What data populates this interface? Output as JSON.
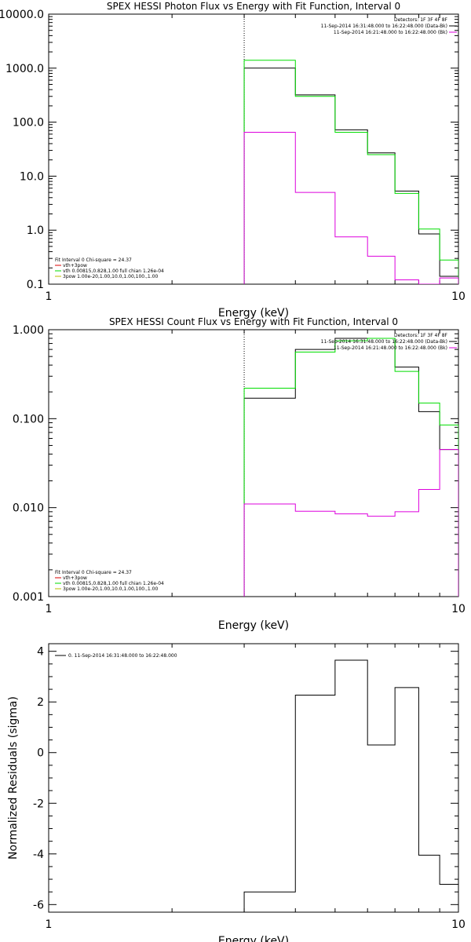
{
  "chart_data": [
    {
      "type": "line",
      "title": "SPEX HESSI Photon Flux vs Energy with Fit Function, Interval 0",
      "xlabel": "Energy (keV)",
      "ylabel": "",
      "xscale": "log",
      "yscale": "log",
      "xlim": [
        1,
        10
      ],
      "ylim": [
        0.1,
        10000
      ],
      "xticks": [
        "1",
        "10"
      ],
      "yticks": [
        "10000.0",
        "1000.0",
        "100.0",
        "10.0",
        "1.0",
        "0.1"
      ],
      "vline_x": 3.0,
      "bin_edges": [
        3.0,
        4.0,
        5.0,
        6.0,
        7.0,
        8.0,
        9.0,
        10.0
      ],
      "series": [
        {
          "color": "#000000",
          "values": [
            1000,
            320,
            72,
            27,
            5.3,
            0.85,
            0.14
          ]
        },
        {
          "color": "#00dd00",
          "values": [
            1400,
            300,
            65,
            25,
            4.8,
            1.05,
            0.28
          ]
        },
        {
          "color": "#dd00dd",
          "values": [
            65,
            5.0,
            0.75,
            0.33,
            0.12,
            0.1,
            0.13
          ]
        }
      ],
      "legend_right": {
        "detectors": "Detectors: 1F 3F 4F 8F",
        "lines": [
          {
            "text": "11-Sep-2014 16:31:48.000 to 16:22:48.000 (Data-Bk)",
            "color": "#000000"
          },
          {
            "text": "11-Sep-2014 16:21:48.000 to 16:22:48.000 (Bk)",
            "color": "#dd00dd"
          }
        ]
      },
      "legend_left": {
        "header": "Fit Interval 0   Chi-square = 24.37",
        "lines": [
          {
            "text": "vth+3pow",
            "color": "#dd0000"
          },
          {
            "text": "vth 0.00815,0.828,1.00   full chian 1.26e-04",
            "color": "#00dd00"
          },
          {
            "text": "3pow 1.00e-20,1.00,10.0,1.00,100.,1.00",
            "color": "#bbbb00"
          }
        ]
      },
      "legend_placement": "top-right and bottom-left"
    },
    {
      "type": "line",
      "title": "SPEX HESSI Count Flux vs Energy with Fit Function, Interval 0",
      "xlabel": "Energy (keV)",
      "ylabel": "",
      "xscale": "log",
      "yscale": "log",
      "xlim": [
        1,
        10
      ],
      "ylim": [
        0.001,
        1.0
      ],
      "xticks": [
        "1",
        "10"
      ],
      "yticks": [
        "1.000",
        "0.100",
        "0.010",
        "0.001"
      ],
      "vline_x": 3.0,
      "bin_edges": [
        3.0,
        4.0,
        5.0,
        6.0,
        7.0,
        8.0,
        9.0,
        10.0
      ],
      "series": [
        {
          "color": "#000000",
          "values": [
            0.17,
            0.6,
            0.8,
            0.8,
            0.38,
            0.12,
            0.045
          ]
        },
        {
          "color": "#00dd00",
          "values": [
            0.22,
            0.56,
            0.75,
            0.8,
            0.34,
            0.15,
            0.085
          ]
        },
        {
          "color": "#dd00dd",
          "values": [
            0.011,
            0.0091,
            0.0085,
            0.008,
            0.009,
            0.016,
            0.045
          ]
        }
      ],
      "legend_right": {
        "detectors": "Detectors: 1F 3F 4F 8F",
        "lines": [
          {
            "text": "11-Sep-2014 16:31:48.000 to 16:22:48.000 (Data-Bk)",
            "color": "#000000"
          },
          {
            "text": "11-Sep-2014 16:21:48.000 to 16:22:48.000 (Bk)",
            "color": "#dd00dd"
          }
        ]
      },
      "legend_left": {
        "header": "Fit Interval 0   Chi-square = 24.37",
        "lines": [
          {
            "text": "vth+3pow",
            "color": "#dd0000"
          },
          {
            "text": "vth 0.00815,0.828,1.00   full chian 1.26e-04",
            "color": "#00dd00"
          },
          {
            "text": "3pow 1.00e-20,1.00,10.0,1.00,100.,1.00",
            "color": "#bbbb00"
          }
        ]
      },
      "legend_placement": "top-right and bottom-left"
    },
    {
      "type": "line",
      "title": "",
      "xlabel": "Energy (keV)",
      "ylabel": "Normalized Residuals (sigma)",
      "xscale": "log",
      "yscale": "linear",
      "xlim": [
        1,
        10
      ],
      "ylim": [
        -6.3,
        4.3
      ],
      "xticks": [
        "1",
        "10"
      ],
      "yticks": [
        "4",
        "2",
        "0",
        "-2",
        "-4",
        "-6"
      ],
      "bin_edges": [
        3.0,
        4.0,
        5.0,
        6.0,
        7.0,
        8.0,
        9.0,
        10.0
      ],
      "series": [
        {
          "color": "#000000",
          "values": [
            -5.5,
            2.27,
            3.65,
            0.3,
            2.57,
            -4.05,
            -5.2
          ]
        }
      ],
      "legend_left": {
        "lines": [
          {
            "text": "0. 11-Sep-2014 16:31:48.000 to 16:22:48.000",
            "color": "#000000"
          }
        ]
      },
      "legend_placement": "top-left"
    }
  ]
}
